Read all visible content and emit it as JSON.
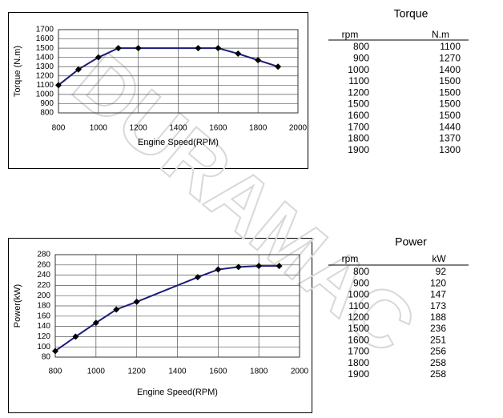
{
  "chart_data": [
    {
      "type": "line",
      "x": [
        800,
        900,
        1000,
        1100,
        1200,
        1500,
        1600,
        1700,
        1800,
        1900
      ],
      "series": [
        {
          "color": "#1c1c7a",
          "marker_color": "#000000",
          "values": [
            1100,
            1270,
            1400,
            1500,
            1500,
            1500,
            1500,
            1440,
            1370,
            1300
          ]
        }
      ],
      "xlim": [
        800,
        2000
      ],
      "xticks": [
        800,
        1000,
        1200,
        1400,
        1600,
        1800,
        2000
      ],
      "ylim": [
        800,
        1700
      ],
      "yticks": [
        800,
        900,
        1000,
        1100,
        1200,
        1300,
        1400,
        1500,
        1600,
        1700
      ],
      "xlabel": "Engine Speed(RPM)",
      "ylabel": "Torque (N.m)",
      "grid": true
    },
    {
      "type": "line",
      "x": [
        800,
        900,
        1000,
        1100,
        1200,
        1500,
        1600,
        1700,
        1800,
        1900
      ],
      "series": [
        {
          "color": "#1c1c7a",
          "marker_color": "#000000",
          "values": [
            92,
            120,
            147,
            173,
            188,
            236,
            251,
            256,
            258,
            258
          ]
        }
      ],
      "xlim": [
        800,
        2000
      ],
      "xticks": [
        800,
        1000,
        1200,
        1400,
        1600,
        1800,
        2000
      ],
      "ylim": [
        80,
        280
      ],
      "yticks": [
        80,
        100,
        120,
        140,
        160,
        180,
        200,
        220,
        240,
        260,
        280
      ],
      "xlabel": "Engine Speed(RPM)",
      "ylabel": "Power(kW)",
      "grid": true
    }
  ],
  "tables": [
    {
      "title": "Torque",
      "columns": [
        "rpm",
        "N.m"
      ],
      "rows": [
        [
          "800",
          "1100"
        ],
        [
          "900",
          "1270"
        ],
        [
          "1000",
          "1400"
        ],
        [
          "1100",
          "1500"
        ],
        [
          "1200",
          "1500"
        ],
        [
          "1500",
          "1500"
        ],
        [
          "1600",
          "1500"
        ],
        [
          "1700",
          "1440"
        ],
        [
          "1800",
          "1370"
        ],
        [
          "1900",
          "1300"
        ]
      ]
    },
    {
      "title": "Power",
      "columns": [
        "rpm",
        "kW"
      ],
      "rows": [
        [
          "800",
          "92"
        ],
        [
          "900",
          "120"
        ],
        [
          "1000",
          "147"
        ],
        [
          "1100",
          "173"
        ],
        [
          "1200",
          "188"
        ],
        [
          "1500",
          "236"
        ],
        [
          "1600",
          "251"
        ],
        [
          "1700",
          "256"
        ],
        [
          "1800",
          "258"
        ],
        [
          "1900",
          "258"
        ]
      ]
    }
  ],
  "watermark": "DURAMAC"
}
